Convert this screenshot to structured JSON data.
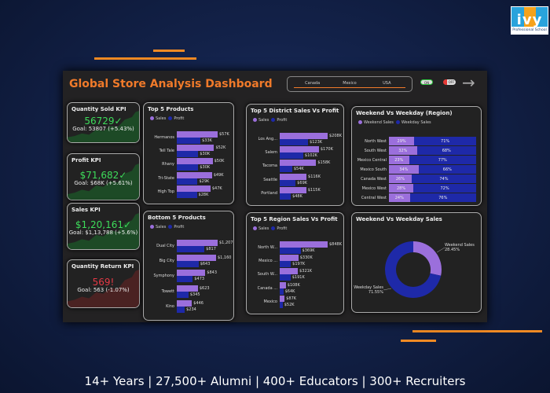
{
  "brand": {
    "logo_text": "ivy",
    "logo_sub": "Professional School"
  },
  "footer": "14+ Years | 27,500+ Alumni | 400+ Educators | 300+ Recruiters",
  "dashboard": {
    "title": "Global Store Analysis Dashboard",
    "slicer": [
      "Canada",
      "Mexico",
      "USA"
    ],
    "toggles": [
      {
        "label": "ON",
        "color": "#2ecc40"
      },
      {
        "label": "OFF",
        "color": "#e53935"
      }
    ],
    "colors": {
      "sales": "#9b6fdc",
      "profit": "#1e29a8",
      "accent": "#f07a2a"
    },
    "kpis": [
      {
        "title": "Quantity Sold KPI",
        "value": "56729✓",
        "goal": "Goal: 53807 (+5.43%)",
        "status": "good"
      },
      {
        "title": "Profit KPI",
        "value": "$71,682✓",
        "goal": "Goal: $68K (+5.61%)",
        "status": "good"
      },
      {
        "title": "Sales KPI",
        "value": "$1,20,161✓",
        "goal": "Goal: $1,13,788 (+5.6%)",
        "status": "good"
      },
      {
        "title": "Quantity Return KPI",
        "value": "569!",
        "goal": "Goal: 563 (-1.07%)",
        "status": "bad"
      }
    ],
    "legend": {
      "sales": "Sales",
      "profit": "Profit",
      "weekend": "Weekend Sales",
      "weekday": "Weekday Sales"
    },
    "chart_data": [
      {
        "type": "bar",
        "title": "Top 5 Products",
        "categories": [
          "Hermanos",
          "Tell Tale",
          "Rhany",
          "Tri-State",
          "High Top"
        ],
        "series": [
          {
            "name": "Sales",
            "values": [
              57,
              52,
              50,
              49,
              47
            ],
            "labels": [
              "$57K",
              "$52K",
              "$50K",
              "$49K",
              "$47K"
            ]
          },
          {
            "name": "Profit",
            "values": [
              33,
              30,
              30,
              29,
              28
            ],
            "labels": [
              "$33K",
              "$30K",
              "$30K",
              "$29K",
              "$28K"
            ]
          }
        ]
      },
      {
        "type": "bar",
        "title": "Bottom 5 Products",
        "categories": [
          "Dual City",
          "Big City",
          "Symphony",
          "Towett",
          "Kino"
        ],
        "series": [
          {
            "name": "Sales",
            "values": [
              1207,
              1160,
              843,
              623,
              446
            ],
            "labels": [
              "$1,207",
              "$1,160",
              "$843",
              "$623",
              "$446"
            ]
          },
          {
            "name": "Profit",
            "values": [
              817,
              643,
              473,
              345,
              234
            ],
            "labels": [
              "$817",
              "$643",
              "$473",
              "$345",
              "$234"
            ]
          }
        ]
      },
      {
        "type": "bar",
        "title": "Top 5 District Sales Vs Profit",
        "categories": [
          "Los Ang...",
          "Salem",
          "Tacoma",
          "Seattle",
          "Portland"
        ],
        "series": [
          {
            "name": "Sales",
            "values": [
              208,
              170,
              158,
              116,
              115
            ],
            "labels": [
              "$208K",
              "$170K",
              "$158K",
              "$116K",
              "$115K"
            ]
          },
          {
            "name": "Profit",
            "values": [
              123,
              102,
              54,
              69,
              48
            ],
            "labels": [
              "$123K",
              "$102K",
              "$54K",
              "$69K",
              "$48K"
            ]
          }
        ]
      },
      {
        "type": "bar",
        "title": "Top 5 Region Sales Vs Profit",
        "categories": [
          "North W...",
          "Mexico ...",
          "South W...",
          "Canada ...",
          "Mexico"
        ],
        "series": [
          {
            "name": "Sales",
            "values": [
              848,
              330,
              321,
              108,
              87
            ],
            "labels": [
              "$848K",
              "$330K",
              "$321K",
              "$108K",
              "$87K"
            ]
          },
          {
            "name": "Profit",
            "values": [
              369,
              197,
              191,
              64,
              52
            ],
            "labels": [
              "$369K",
              "$197K",
              "$191K",
              "$64K",
              "$52K"
            ]
          }
        ]
      },
      {
        "type": "bar",
        "stacked": true,
        "title": "Weekend Vs Weekday (Region)",
        "categories": [
          "North West",
          "South West",
          "Mexico Central",
          "Mexico South",
          "Canada West",
          "Mexico West",
          "Central West"
        ],
        "series": [
          {
            "name": "Weekend Sales",
            "values": [
              29,
              32,
              23,
              34,
              26,
              28,
              24
            ]
          },
          {
            "name": "Weekday Sales",
            "values": [
              71,
              68,
              77,
              66,
              74,
              72,
              76
            ]
          }
        ]
      },
      {
        "type": "pie",
        "donut": true,
        "title": "Weekend Vs Weekday Sales",
        "slices": [
          {
            "name": "Weekend Sales",
            "value": 28.45,
            "label": "28.45%"
          },
          {
            "name": "Weekday Sales",
            "value": 71.55,
            "label": "71.55%"
          }
        ]
      }
    ]
  }
}
